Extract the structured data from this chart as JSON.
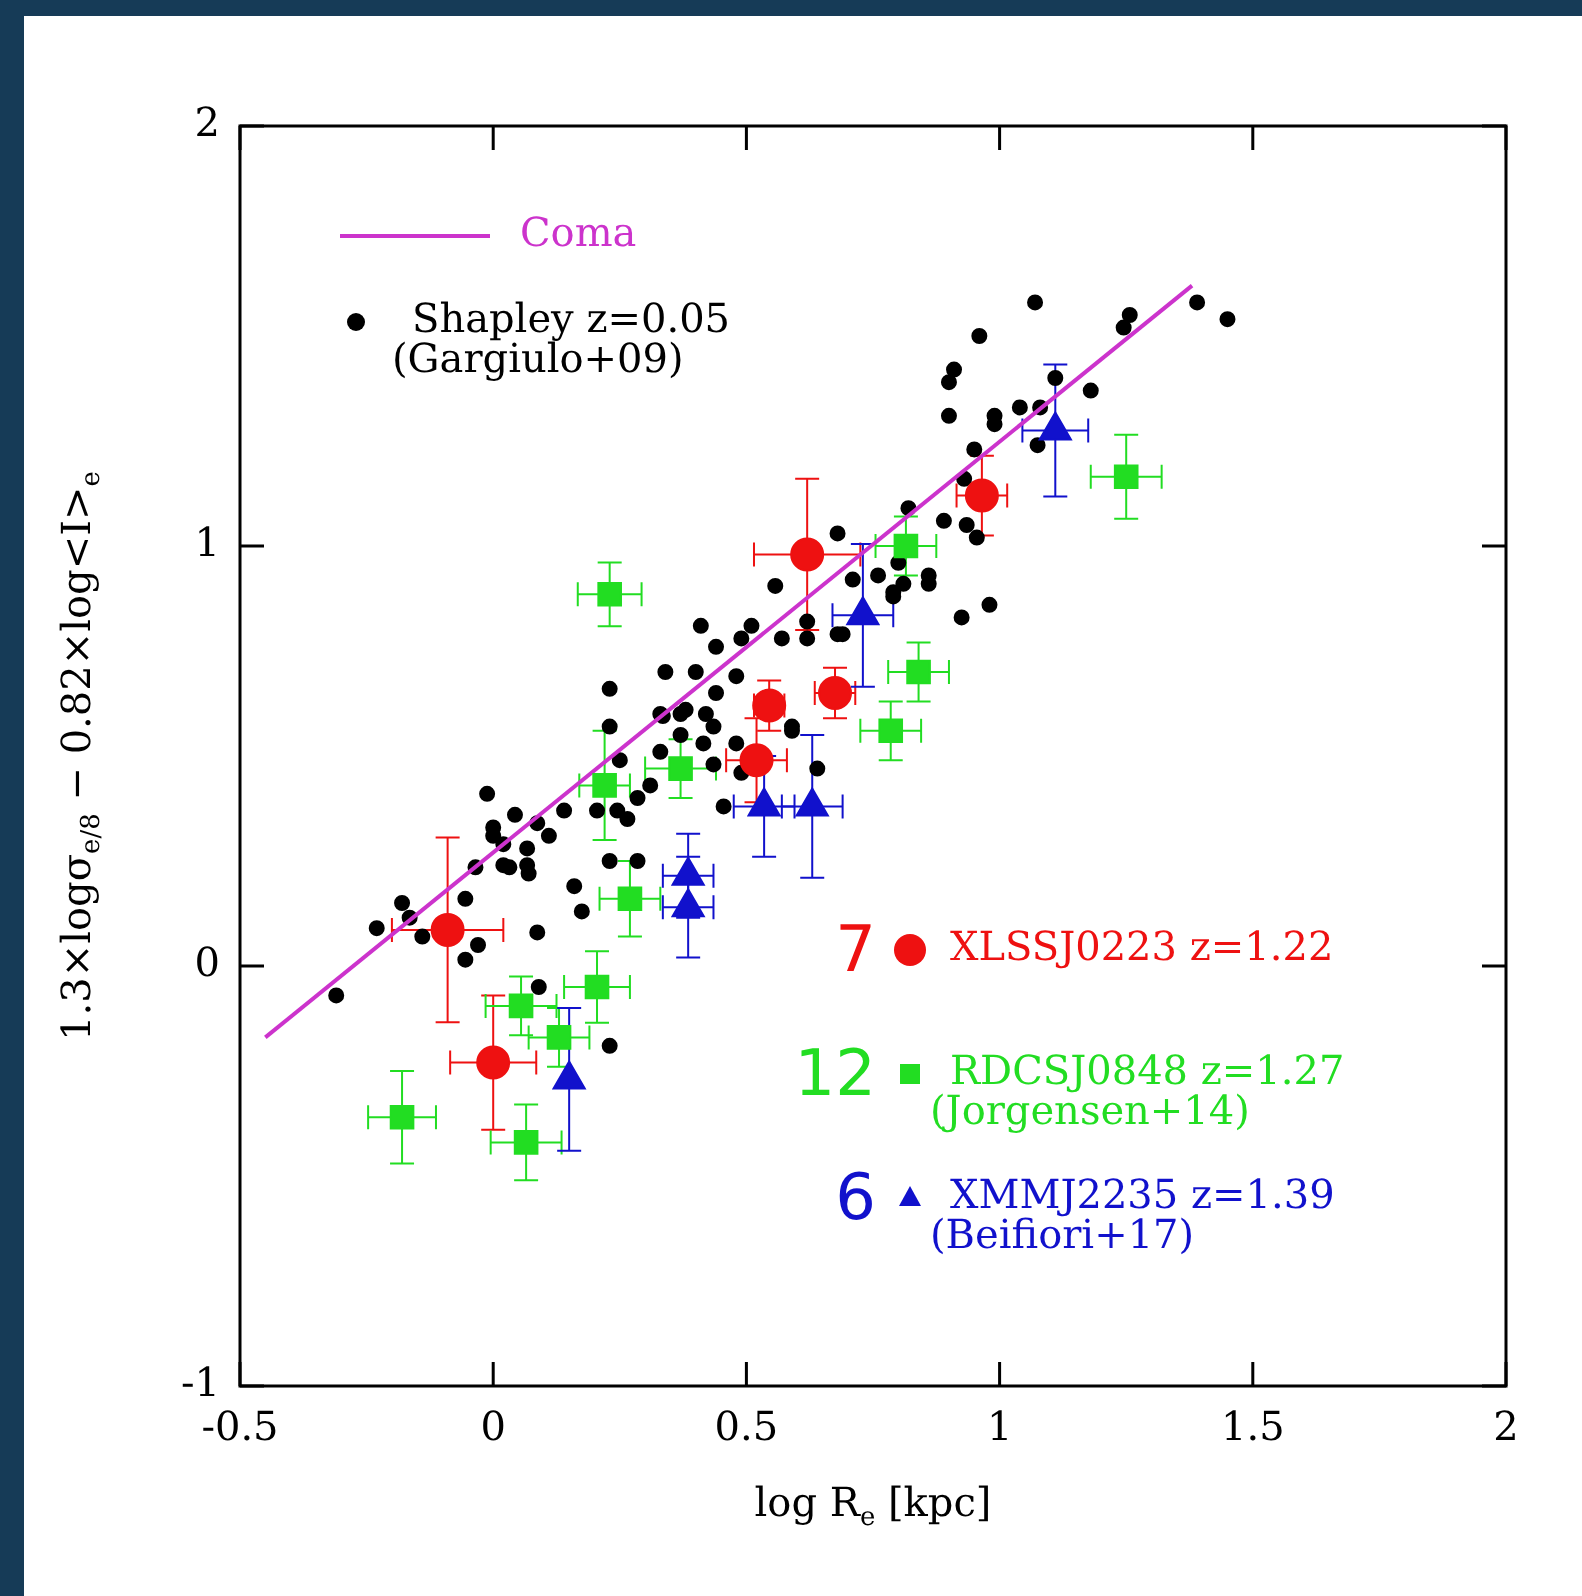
{
  "chart_data": {
    "type": "scatter",
    "xlabel": "log R$_{e}$ [kpc]",
    "ylabel": "1.3×logσ$_{e/8}$ − 0.82×log<I>$_{e}$",
    "xlim": [
      -0.5,
      2
    ],
    "ylim": [
      -1,
      2
    ],
    "xticks": [
      -0.5,
      0,
      0.5,
      1,
      1.5,
      2
    ],
    "yticks": [
      -1,
      0,
      1,
      2
    ],
    "legend": "top left",
    "annotations": [
      "7",
      "12",
      "6"
    ],
    "series": [
      {
        "name": "Coma",
        "type": "line",
        "color": "#cc33cc",
        "marker": "none",
        "x": [
          -0.45,
          1.38
        ],
        "values": [
          -0.17,
          1.62
        ]
      },
      {
        "name": "Shapley z=0.05 (Gargiulo+09)",
        "color": "#000000",
        "marker": "circle",
        "x": [
          0.68,
          0.557,
          0.41,
          0.51,
          0.44,
          0.49,
          0.57,
          0.62,
          0.62,
          0.34,
          0.4,
          0.48,
          0.44,
          0.23,
          0.37,
          0.33,
          0.42,
          0.59,
          0.71,
          0.76,
          0.68,
          0.79,
          1.07,
          0.96,
          0.91,
          0.9,
          0.9,
          0.99,
          0.99,
          1.04,
          1.08,
          1.11,
          1.18,
          1.245,
          1.257,
          1.39,
          1.45,
          1.075,
          0.95,
          0.93,
          0.89,
          0.935,
          0.955,
          0.82,
          0.8,
          0.81,
          0.79,
          0.86,
          0.86,
          0.925,
          0.98,
          0.69,
          0.23,
          0.335,
          0.38,
          0.435,
          0.37,
          0.33,
          0.415,
          0.435,
          0.48,
          0.25,
          0.205,
          0.245,
          0.265,
          0.285,
          0.31,
          0.14,
          0.11,
          0.087,
          0.043,
          0.0,
          -0.012,
          0.0,
          0.02,
          0.067,
          0.067,
          0.07,
          0.02,
          0.032,
          -0.035,
          0.16,
          0.175,
          -0.055,
          -0.18,
          -0.165,
          -0.14,
          -0.23,
          -0.03,
          -0.055,
          0.087,
          -0.31,
          0.09,
          0.23,
          0.455,
          0.64,
          0.59,
          0.49,
          0.23,
          0.285
        ],
        "values": [
          1.03,
          0.905,
          0.81,
          0.81,
          0.76,
          0.78,
          0.78,
          0.78,
          0.82,
          0.7,
          0.7,
          0.69,
          0.65,
          0.66,
          0.6,
          0.6,
          0.6,
          0.56,
          0.92,
          0.93,
          0.79,
          0.89,
          1.58,
          1.5,
          1.42,
          1.39,
          1.31,
          1.31,
          1.29,
          1.33,
          1.33,
          1.4,
          1.37,
          1.52,
          1.55,
          1.58,
          1.54,
          1.24,
          1.23,
          1.16,
          1.06,
          1.05,
          1.02,
          1.09,
          0.96,
          0.91,
          0.88,
          0.93,
          0.91,
          0.83,
          0.86,
          0.79,
          0.57,
          0.595,
          0.61,
          0.57,
          0.55,
          0.51,
          0.53,
          0.48,
          0.53,
          0.49,
          0.37,
          0.37,
          0.35,
          0.4,
          0.43,
          0.37,
          0.31,
          0.34,
          0.36,
          0.33,
          0.41,
          0.31,
          0.29,
          0.28,
          0.24,
          0.22,
          0.24,
          0.235,
          0.235,
          0.19,
          0.13,
          0.16,
          0.15,
          0.115,
          0.07,
          0.09,
          0.05,
          0.015,
          0.08,
          -0.07,
          -0.05,
          -0.19,
          0.38,
          0.47,
          0.57,
          0.46,
          0.25,
          0.25
        ]
      },
      {
        "name": "XLSSJ0223 z=1.22",
        "color": "#ee1111",
        "marker": "circle",
        "x": [
          -0.09,
          0.0,
          0.62,
          0.545,
          0.52,
          0.675,
          0.965
        ],
        "values": [
          0.086,
          -0.23,
          0.98,
          0.62,
          0.49,
          0.65,
          1.12
        ],
        "xerrors": [
          0.11,
          0.085,
          0.105,
          0.03,
          0.06,
          0.04,
          0.05
        ],
        "errors": [
          0.22,
          0.16,
          0.18,
          0.06,
          0.1,
          0.06,
          0.095
        ]
      },
      {
        "name": "RDCSJ0848 z=1.27 (Jorgensen+14)",
        "color": "#22dd22",
        "marker": "square",
        "x": [
          0.23,
          0.055,
          -0.18,
          0.065,
          0.13,
          0.205,
          0.27,
          0.22,
          0.37,
          0.815,
          0.84,
          0.785,
          1.25
        ],
        "values": [
          0.885,
          -0.095,
          -0.36,
          -0.42,
          -0.17,
          -0.05,
          0.16,
          0.43,
          0.47,
          1.0,
          0.7,
          0.56,
          1.165
        ],
        "xerrors": [
          0.063,
          0.07,
          0.067,
          0.07,
          0.06,
          0.065,
          0.06,
          0.05,
          0.07,
          0.06,
          0.06,
          0.06,
          0.07
        ],
        "errors": [
          0.076,
          0.07,
          0.11,
          0.09,
          0.07,
          0.085,
          0.09,
          0.13,
          0.07,
          0.07,
          0.07,
          0.07,
          0.1
        ]
      },
      {
        "name": "XMMJ2235 z=1.39 (Beifiori+17)",
        "color": "#1111cc",
        "marker": "triangle",
        "x": [
          0.15,
          0.385,
          0.385,
          0.535,
          0.63,
          0.73,
          1.11
        ],
        "values": [
          -0.27,
          0.215,
          0.14,
          0.38,
          0.38,
          0.835,
          1.275
        ],
        "xerrors": [
          null,
          0.05,
          0.05,
          0.06,
          0.06,
          0.06,
          0.065
        ],
        "errors": [
          0.17,
          0.1,
          0.12,
          0.12,
          0.17,
          0.17,
          0.157
        ]
      }
    ]
  }
}
